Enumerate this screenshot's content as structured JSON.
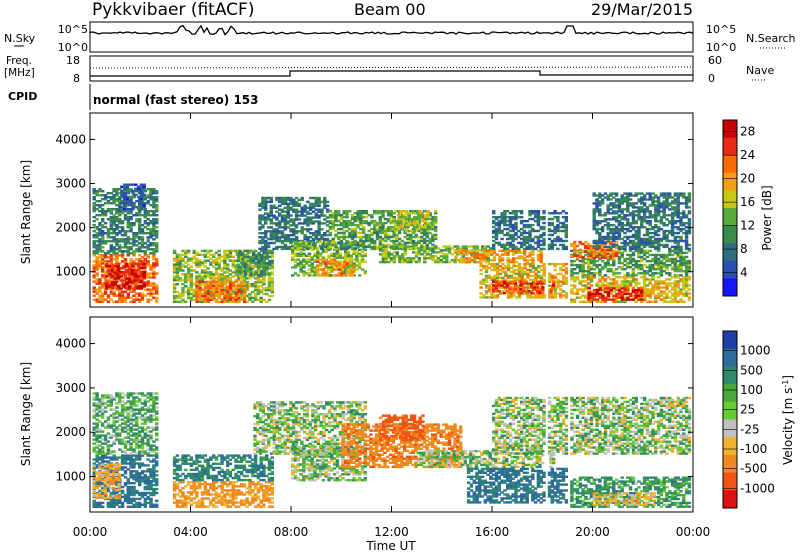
{
  "header": {
    "station": "Pykkvibaer (fitACF)",
    "beam": "Beam 00",
    "date": "29/Mar/2015"
  },
  "top_panel": {
    "nsky_label": "N.Sky",
    "nsky_top": "10^5",
    "nsky_bottom": "10^0",
    "nsearch_label": "N.Search",
    "nsearch_top": "10^5",
    "nsearch_bottom": "10^0"
  },
  "freq_panel": {
    "freq_label": "Freq.",
    "freq_unit": "[MHz]",
    "freq_top": "18",
    "freq_bottom": "8",
    "nave_label": "Nave",
    "nave_top": "60",
    "nave_bottom": "0"
  },
  "cpid_panel": {
    "label": "CPID",
    "value": "normal (fast stereo) 153"
  },
  "colors": {
    "power_scale": [
      "#1414ff",
      "#2a4fb0",
      "#2e6e7a",
      "#3a8a50",
      "#55aa3a",
      "#c8c814",
      "#f0a014",
      "#ff6a00",
      "#e62a14",
      "#c80000"
    ],
    "velocity_scale": [
      "#1f3fa6",
      "#2d6c9c",
      "#2f8a6a",
      "#49a83a",
      "#66cc33",
      "#c0c0c0",
      "#f0b030",
      "#f08a1e",
      "#ee5514",
      "#dd1111"
    ]
  },
  "chart_data": [
    {
      "type": "heatmap",
      "panel": "power",
      "ylabel": "Slant Range [km]",
      "yticks": [
        "1000",
        "2000",
        "3000",
        "4000"
      ],
      "ylim": [
        200,
        4600
      ],
      "xticks": [
        "00:00",
        "04:00",
        "08:00",
        "12:00",
        "16:00",
        "20:00",
        "00:00"
      ],
      "xlim": [
        0,
        24
      ],
      "colorbar_label": "Power [dB]",
      "colorbar_ticks": [
        "4",
        "8",
        "12",
        "16",
        "20",
        "24",
        "28"
      ],
      "colorbar_range": [
        0,
        30
      ],
      "blobs": [
        {
          "t0": 0.1,
          "t1": 2.7,
          "r0": 300,
          "r1": 1400,
          "value": 22
        },
        {
          "t0": 0.6,
          "t1": 2.2,
          "r0": 600,
          "r1": 1200,
          "value": 27
        },
        {
          "t0": 0.1,
          "t1": 2.7,
          "r0": 1400,
          "r1": 2900,
          "value": 9
        },
        {
          "t0": 1.2,
          "t1": 2.2,
          "r0": 2400,
          "r1": 3000,
          "value": 6
        },
        {
          "t0": 3.3,
          "t1": 7.3,
          "r0": 300,
          "r1": 1500,
          "value": 15
        },
        {
          "t0": 4.2,
          "t1": 6.2,
          "r0": 300,
          "r1": 800,
          "value": 22
        },
        {
          "t0": 5.8,
          "t1": 7.2,
          "r0": 900,
          "r1": 1500,
          "value": 10
        },
        {
          "t0": 6.7,
          "t1": 9.5,
          "r0": 1500,
          "r1": 2700,
          "value": 8
        },
        {
          "t0": 8.0,
          "t1": 11.0,
          "r0": 900,
          "r1": 1700,
          "value": 14
        },
        {
          "t0": 9.0,
          "t1": 10.5,
          "r0": 900,
          "r1": 1300,
          "value": 21
        },
        {
          "t0": 9.5,
          "t1": 13.8,
          "r0": 1500,
          "r1": 2400,
          "value": 12
        },
        {
          "t0": 12.0,
          "t1": 13.5,
          "r0": 1900,
          "r1": 2400,
          "value": 16
        },
        {
          "t0": 11.5,
          "t1": 16.0,
          "r0": 1200,
          "r1": 1600,
          "value": 14
        },
        {
          "t0": 14.5,
          "t1": 18.0,
          "r0": 1200,
          "r1": 1500,
          "value": 20
        },
        {
          "t0": 15.5,
          "t1": 19.0,
          "r0": 400,
          "r1": 1200,
          "value": 18
        },
        {
          "t0": 16.0,
          "t1": 18.5,
          "r0": 500,
          "r1": 800,
          "value": 25
        },
        {
          "t0": 16.0,
          "t1": 19.0,
          "r0": 1500,
          "r1": 2400,
          "value": 8
        },
        {
          "t0": 19.0,
          "t1": 23.9,
          "r0": 300,
          "r1": 900,
          "value": 18
        },
        {
          "t0": 19.8,
          "t1": 22.0,
          "r0": 350,
          "r1": 650,
          "value": 27
        },
        {
          "t0": 19.0,
          "t1": 23.9,
          "r0": 900,
          "r1": 1500,
          "value": 12
        },
        {
          "t0": 19.0,
          "t1": 21.0,
          "r0": 1300,
          "r1": 1700,
          "value": 22
        },
        {
          "t0": 20.0,
          "t1": 23.9,
          "r0": 1500,
          "r1": 2800,
          "value": 8
        }
      ]
    },
    {
      "type": "heatmap",
      "panel": "velocity",
      "ylabel": "Slant Range [km]",
      "yticks": [
        "1000",
        "2000",
        "3000",
        "4000"
      ],
      "ylim": [
        200,
        4600
      ],
      "xticks": [
        "00:00",
        "04:00",
        "08:00",
        "12:00",
        "16:00",
        "20:00",
        "00:00"
      ],
      "xlim": [
        0,
        24
      ],
      "xlabel": "Time UT",
      "colorbar_label": "Velocity [m s^-1]",
      "colorbar_ticks": [
        "1000",
        "500",
        "100",
        "25",
        "-25",
        "-100",
        "-500",
        "-1000"
      ],
      "blobs": [
        {
          "t0": 0.1,
          "t1": 2.7,
          "r0": 300,
          "r1": 1500,
          "value": 300
        },
        {
          "t0": 0.1,
          "t1": 2.7,
          "r0": 1500,
          "r1": 2900,
          "value": 60
        },
        {
          "t0": 0.1,
          "t1": 1.2,
          "r0": 500,
          "r1": 1300,
          "value": -200
        },
        {
          "t0": 3.3,
          "t1": 7.3,
          "r0": 300,
          "r1": 900,
          "value": -300
        },
        {
          "t0": 3.3,
          "t1": 7.3,
          "r0": 900,
          "r1": 1500,
          "value": 200
        },
        {
          "t0": 6.5,
          "t1": 11.0,
          "r0": 1500,
          "r1": 2700,
          "value": 0
        },
        {
          "t0": 8.0,
          "t1": 11.0,
          "r0": 900,
          "r1": 1700,
          "value": 0
        },
        {
          "t0": 10.0,
          "t1": 14.8,
          "r0": 1200,
          "r1": 2200,
          "value": -400
        },
        {
          "t0": 11.5,
          "t1": 13.3,
          "r0": 1800,
          "r1": 2400,
          "value": -600
        },
        {
          "t0": 13.0,
          "t1": 18.5,
          "r0": 1200,
          "r1": 1600,
          "value": 0
        },
        {
          "t0": 15.0,
          "t1": 19.0,
          "r0": 400,
          "r1": 1200,
          "value": 300
        },
        {
          "t0": 16.0,
          "t1": 23.9,
          "r0": 1500,
          "r1": 2800,
          "value": 0
        },
        {
          "t0": 19.0,
          "t1": 23.9,
          "r0": 300,
          "r1": 1000,
          "value": 120
        },
        {
          "t0": 20.0,
          "t1": 22.5,
          "r0": 350,
          "r1": 650,
          "value": -150
        }
      ]
    }
  ]
}
